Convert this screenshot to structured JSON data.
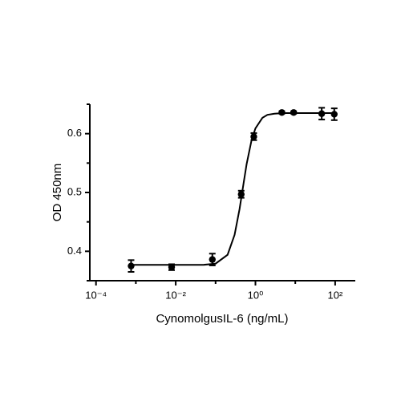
{
  "chart_data": {
    "type": "scatter",
    "x_label": "CynomolgusIL-6 (ng/mL)",
    "y_label": "OD 450nm",
    "log_x": true,
    "color": "#000000",
    "x": [
      0.00076,
      0.0079,
      0.083,
      0.44,
      0.91,
      4.6,
      9.1,
      46,
      95
    ],
    "values": [
      0.375,
      0.373,
      0.386,
      0.497,
      0.595,
      0.636,
      0.636,
      0.634,
      0.633
    ],
    "errors": [
      0.01,
      0.005,
      0.01,
      0.006,
      0.006,
      0.002,
      0.002,
      0.01,
      0.01
    ],
    "curve": {
      "x": [
        0.00076,
        0.01,
        0.05,
        0.1,
        0.2,
        0.3,
        0.4,
        0.5,
        0.6,
        0.8,
        1,
        1.5,
        2,
        3,
        5,
        10,
        95
      ],
      "values": [
        0.377,
        0.377,
        0.377,
        0.379,
        0.394,
        0.428,
        0.472,
        0.514,
        0.548,
        0.589,
        0.609,
        0.627,
        0.632,
        0.634,
        0.635,
        0.635,
        0.635
      ]
    },
    "xlim": [
      7e-05,
      320
    ],
    "ylim": [
      0.35,
      0.65
    ],
    "xticks": [
      {
        "value": 0.0001,
        "label": "10⁻⁴"
      },
      {
        "value": 0.01,
        "label": "10⁻²"
      },
      {
        "value": 1,
        "label": "10⁰"
      },
      {
        "value": 100,
        "label": "10²"
      }
    ],
    "xminor": [
      0.001,
      0.1,
      10
    ],
    "yticks": [
      0.4,
      0.5,
      0.6
    ],
    "yminor": [
      0.35,
      0.45,
      0.55,
      0.65
    ]
  }
}
